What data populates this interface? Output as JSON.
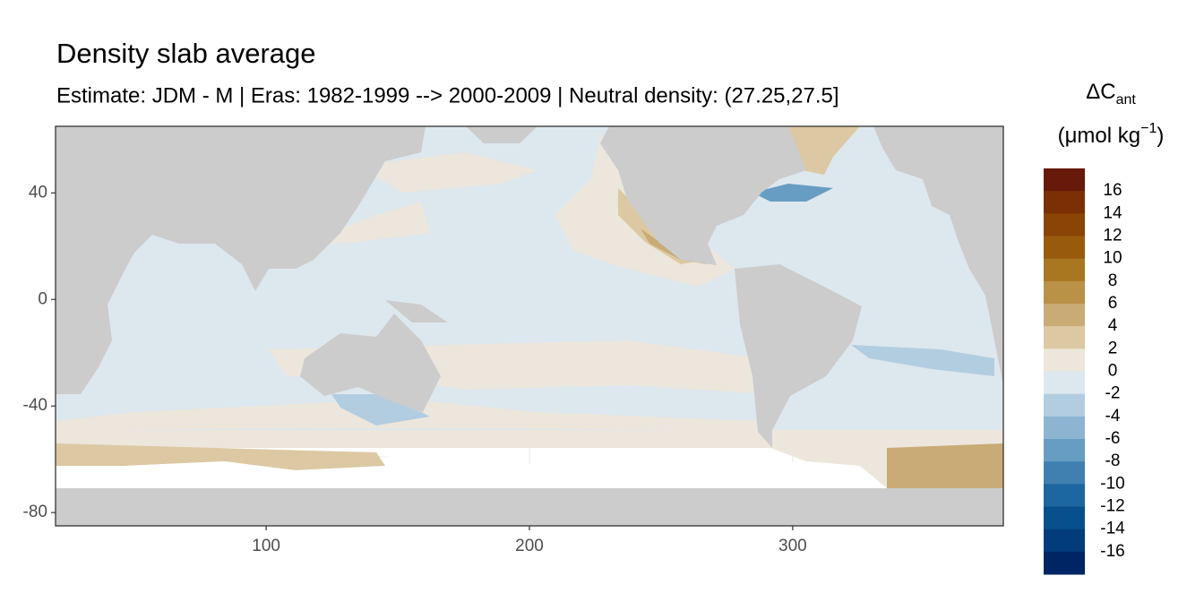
{
  "chart_data": {
    "type": "map",
    "title": "Density slab average",
    "subtitle": "Estimate: JDM - M | Eras: 1982-1999 --> 2000-2009 | Neutral density: (27.25,27.5]",
    "xlim": [
      20,
      380
    ],
    "ylim": [
      -85,
      65
    ],
    "xticks": [
      100,
      200,
      300
    ],
    "yticks": [
      40,
      0,
      -40,
      -80
    ],
    "grid": true,
    "legend": {
      "title": "ΔC",
      "title_sub": "ant",
      "unit": "(μmol kg",
      "unit_sup": "−1",
      "unit_end": ")",
      "limits": [
        -18,
        18
      ],
      "breaks": [
        16,
        14,
        12,
        10,
        8,
        6,
        4,
        2,
        0,
        -2,
        -4,
        -6,
        -8,
        -10,
        -12,
        -14,
        -16
      ],
      "colors": [
        "#67190a",
        "#7a2f05",
        "#8a4406",
        "#985b0e",
        "#a8771f",
        "#b99147",
        "#c9ab76",
        "#dcc9a3",
        "#ece6dc",
        "#dde7ee",
        "#b3cde0",
        "#8db5d2",
        "#679dc3",
        "#3f80b0",
        "#1d669f",
        "#07508d",
        "#023c7b",
        "#002564"
      ]
    }
  }
}
